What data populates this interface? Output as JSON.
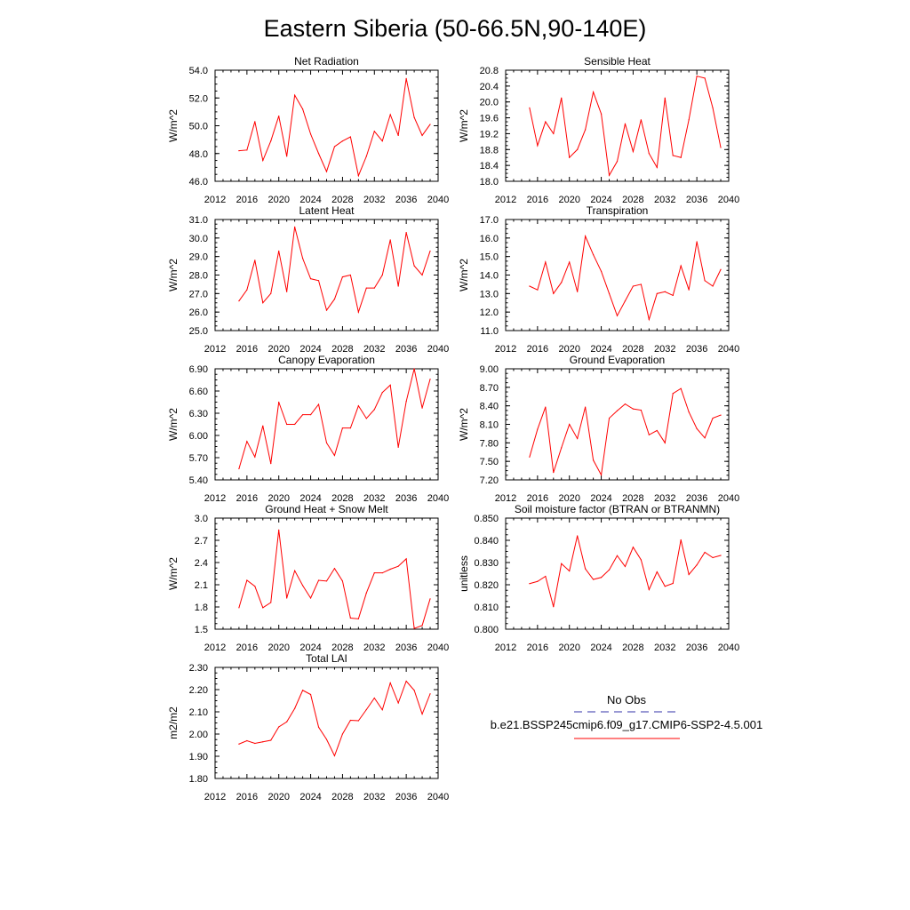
{
  "figure": {
    "title": "Eastern Siberia (50-66.5N,90-140E)"
  },
  "legend": {
    "obs_label": "No Obs",
    "obs_color": "#3333aa",
    "model_label": "b.e21.BSSP245cmip6.f09_g17.CMIP6-SSP2-4.5.001",
    "model_color": "#ff0000"
  },
  "chart_data": [
    {
      "type": "line",
      "title": "Net Radiation",
      "ylabel": "W/m^2",
      "xlim": [
        2012,
        2040
      ],
      "x_ticks": [
        2012,
        2016,
        2020,
        2024,
        2028,
        2032,
        2036,
        2040
      ],
      "x_tick_labels": [
        "2012",
        "2016",
        "2020",
        "2024",
        "2028",
        "2032",
        "2036",
        "2040"
      ],
      "ylim": [
        46.0,
        54.0
      ],
      "y_ticks": [
        46.0,
        48.0,
        50.0,
        52.0,
        54.0
      ],
      "y_tick_labels": [
        "46.0",
        "48.0",
        "50.0",
        "52.0",
        "54.0"
      ],
      "series": [
        {
          "color": "#ff0000",
          "x": [
            2015,
            2016,
            2017,
            2018,
            2019,
            2020,
            2021,
            2022,
            2023,
            2024,
            2025,
            2026,
            2027,
            2028,
            2029,
            2030,
            2031,
            2032,
            2033,
            2034,
            2035,
            2036,
            2037,
            2038,
            2039
          ],
          "y": [
            48.2,
            48.25,
            50.3,
            47.5,
            48.9,
            50.7,
            47.8,
            52.2,
            51.2,
            49.4,
            48.0,
            46.7,
            48.5,
            48.9,
            49.2,
            46.4,
            47.8,
            49.6,
            48.9,
            50.8,
            49.3,
            53.4,
            50.6,
            49.3,
            50.1
          ]
        }
      ]
    },
    {
      "type": "line",
      "title": "Sensible Heat",
      "ylabel": "W/m^2",
      "xlim": [
        2012,
        2040
      ],
      "x_ticks": [
        2012,
        2016,
        2020,
        2024,
        2028,
        2032,
        2036,
        2040
      ],
      "x_tick_labels": [
        "2012",
        "2016",
        "2020",
        "2024",
        "2028",
        "2032",
        "2036",
        "2040"
      ],
      "ylim": [
        18.0,
        20.8
      ],
      "y_ticks": [
        18.0,
        18.4,
        18.8,
        19.2,
        19.6,
        20.0,
        20.4,
        20.8
      ],
      "y_tick_labels": [
        "18.0",
        "18.4",
        "18.8",
        "19.2",
        "19.6",
        "20.0",
        "20.4",
        "20.8"
      ],
      "series": [
        {
          "color": "#ff0000",
          "x": [
            2015,
            2016,
            2017,
            2018,
            2019,
            2020,
            2021,
            2022,
            2023,
            2024,
            2025,
            2026,
            2027,
            2028,
            2029,
            2030,
            2031,
            2032,
            2033,
            2034,
            2035,
            2036,
            2037,
            2038,
            2039
          ],
          "y": [
            19.85,
            18.9,
            19.5,
            19.2,
            20.1,
            18.6,
            18.8,
            19.3,
            20.25,
            19.7,
            18.15,
            18.5,
            19.45,
            18.75,
            19.55,
            18.7,
            18.35,
            20.1,
            18.65,
            18.6,
            19.55,
            20.65,
            20.6,
            19.85,
            18.85
          ]
        }
      ]
    },
    {
      "type": "line",
      "title": "Latent Heat",
      "ylabel": "W/m^2",
      "xlim": [
        2012,
        2040
      ],
      "x_ticks": [
        2012,
        2016,
        2020,
        2024,
        2028,
        2032,
        2036,
        2040
      ],
      "x_tick_labels": [
        "2012",
        "2016",
        "2020",
        "2024",
        "2028",
        "2032",
        "2036",
        "2040"
      ],
      "ylim": [
        25.0,
        31.0
      ],
      "y_ticks": [
        25.0,
        26.0,
        27.0,
        28.0,
        29.0,
        30.0,
        31.0
      ],
      "y_tick_labels": [
        "25.0",
        "26.0",
        "27.0",
        "28.0",
        "29.0",
        "30.0",
        "31.0"
      ],
      "series": [
        {
          "color": "#ff0000",
          "x": [
            2015,
            2016,
            2017,
            2018,
            2019,
            2020,
            2021,
            2022,
            2023,
            2024,
            2025,
            2026,
            2027,
            2028,
            2029,
            2030,
            2031,
            2032,
            2033,
            2034,
            2035,
            2036,
            2037,
            2038,
            2039
          ],
          "y": [
            26.6,
            27.2,
            28.8,
            26.5,
            27.0,
            29.3,
            27.1,
            30.6,
            28.9,
            27.8,
            27.7,
            26.1,
            26.7,
            27.9,
            28.0,
            26.0,
            27.3,
            27.3,
            28.0,
            29.9,
            27.4,
            30.3,
            28.5,
            28.0,
            29.3
          ]
        }
      ]
    },
    {
      "type": "line",
      "title": "Transpiration",
      "ylabel": "W/m^2",
      "xlim": [
        2012,
        2040
      ],
      "x_ticks": [
        2012,
        2016,
        2020,
        2024,
        2028,
        2032,
        2036,
        2040
      ],
      "x_tick_labels": [
        "2012",
        "2016",
        "2020",
        "2024",
        "2028",
        "2032",
        "2036",
        "2040"
      ],
      "ylim": [
        11.0,
        17.0
      ],
      "y_ticks": [
        11.0,
        12.0,
        13.0,
        14.0,
        15.0,
        16.0,
        17.0
      ],
      "y_tick_labels": [
        "11.0",
        "12.0",
        "13.0",
        "14.0",
        "15.0",
        "16.0",
        "17.0"
      ],
      "series": [
        {
          "color": "#ff0000",
          "x": [
            2015,
            2016,
            2017,
            2018,
            2019,
            2020,
            2021,
            2022,
            2023,
            2024,
            2025,
            2026,
            2027,
            2028,
            2029,
            2030,
            2031,
            2032,
            2033,
            2034,
            2035,
            2036,
            2037,
            2038,
            2039
          ],
          "y": [
            13.4,
            13.2,
            14.7,
            13.0,
            13.6,
            14.7,
            13.1,
            16.1,
            15.1,
            14.2,
            13.0,
            11.8,
            12.6,
            13.4,
            13.5,
            11.6,
            13.0,
            13.1,
            12.9,
            14.5,
            13.2,
            15.8,
            13.7,
            13.4,
            14.3
          ]
        }
      ]
    },
    {
      "type": "line",
      "title": "Canopy Evaporation",
      "ylabel": "W/m^2",
      "xlim": [
        2012,
        2040
      ],
      "x_ticks": [
        2012,
        2016,
        2020,
        2024,
        2028,
        2032,
        2036,
        2040
      ],
      "x_tick_labels": [
        "2012",
        "2016",
        "2020",
        "2024",
        "2028",
        "2032",
        "2036",
        "2040"
      ],
      "ylim": [
        5.4,
        6.9
      ],
      "y_ticks": [
        5.4,
        5.7,
        6.0,
        6.3,
        6.6,
        6.9
      ],
      "y_tick_labels": [
        "5.40",
        "5.70",
        "6.00",
        "6.30",
        "6.60",
        "6.90"
      ],
      "series": [
        {
          "color": "#ff0000",
          "x": [
            2015,
            2016,
            2017,
            2018,
            2019,
            2020,
            2021,
            2022,
            2023,
            2024,
            2025,
            2026,
            2027,
            2028,
            2029,
            2030,
            2031,
            2032,
            2033,
            2034,
            2035,
            2036,
            2037,
            2038,
            2039
          ],
          "y": [
            5.55,
            5.92,
            5.71,
            6.13,
            5.62,
            6.45,
            6.15,
            6.15,
            6.28,
            6.28,
            6.42,
            5.9,
            5.73,
            6.1,
            6.1,
            6.4,
            6.23,
            6.35,
            6.58,
            6.68,
            5.84,
            6.46,
            6.9,
            6.37,
            6.76
          ]
        }
      ]
    },
    {
      "type": "line",
      "title": "Ground Evaporation",
      "ylabel": "W/m^2",
      "xlim": [
        2012,
        2040
      ],
      "x_ticks": [
        2012,
        2016,
        2020,
        2024,
        2028,
        2032,
        2036,
        2040
      ],
      "x_tick_labels": [
        "2012",
        "2016",
        "2020",
        "2024",
        "2028",
        "2032",
        "2036",
        "2040"
      ],
      "ylim": [
        7.2,
        9.0
      ],
      "y_ticks": [
        7.2,
        7.5,
        7.8,
        8.1,
        8.4,
        8.7,
        9.0
      ],
      "y_tick_labels": [
        "7.20",
        "7.50",
        "7.80",
        "8.10",
        "8.40",
        "8.70",
        "9.00"
      ],
      "series": [
        {
          "color": "#ff0000",
          "x": [
            2015,
            2016,
            2017,
            2018,
            2019,
            2020,
            2021,
            2022,
            2023,
            2024,
            2025,
            2026,
            2027,
            2028,
            2029,
            2030,
            2031,
            2032,
            2033,
            2034,
            2035,
            2036,
            2037,
            2038,
            2039
          ],
          "y": [
            7.57,
            8.02,
            8.38,
            7.32,
            7.72,
            8.1,
            7.87,
            8.38,
            7.52,
            7.28,
            8.2,
            8.32,
            8.43,
            8.35,
            8.33,
            7.93,
            8.0,
            7.8,
            8.6,
            8.68,
            8.3,
            8.03,
            7.88,
            8.2,
            8.25
          ]
        }
      ]
    },
    {
      "type": "line",
      "title": "Ground Heat + Snow Melt",
      "ylabel": "W/m^2",
      "xlim": [
        2012,
        2040
      ],
      "x_ticks": [
        2012,
        2016,
        2020,
        2024,
        2028,
        2032,
        2036,
        2040
      ],
      "x_tick_labels": [
        "2012",
        "2016",
        "2020",
        "2024",
        "2028",
        "2032",
        "2036",
        "2040"
      ],
      "ylim": [
        1.5,
        3.0
      ],
      "y_ticks": [
        1.5,
        1.8,
        2.1,
        2.4,
        2.7,
        3.0
      ],
      "y_tick_labels": [
        "1.5",
        "1.8",
        "2.1",
        "2.4",
        "2.7",
        "3.0"
      ],
      "series": [
        {
          "color": "#ff0000",
          "x": [
            2015,
            2016,
            2017,
            2018,
            2019,
            2020,
            2021,
            2022,
            2023,
            2024,
            2025,
            2026,
            2027,
            2028,
            2029,
            2030,
            2031,
            2032,
            2033,
            2034,
            2035,
            2036,
            2037,
            2038,
            2039
          ],
          "y": [
            1.79,
            2.16,
            2.08,
            1.79,
            1.86,
            2.84,
            1.92,
            2.29,
            2.09,
            1.92,
            2.16,
            2.15,
            2.32,
            2.15,
            1.65,
            1.64,
            1.99,
            2.26,
            2.26,
            2.31,
            2.35,
            2.45,
            1.51,
            1.55,
            1.91
          ]
        }
      ]
    },
    {
      "type": "line",
      "title": "Soil moisture factor (BTRAN or BTRANMN)",
      "ylabel": "unitless",
      "xlim": [
        2012,
        2040
      ],
      "x_ticks": [
        2012,
        2016,
        2020,
        2024,
        2028,
        2032,
        2036,
        2040
      ],
      "x_tick_labels": [
        "2012",
        "2016",
        "2020",
        "2024",
        "2028",
        "2032",
        "2036",
        "2040"
      ],
      "ylim": [
        0.8,
        0.85
      ],
      "y_ticks": [
        0.8,
        0.81,
        0.82,
        0.83,
        0.84,
        0.85
      ],
      "y_tick_labels": [
        "0.800",
        "0.810",
        "0.820",
        "0.830",
        "0.840",
        "0.850"
      ],
      "series": [
        {
          "color": "#ff0000",
          "x": [
            2015,
            2016,
            2017,
            2018,
            2019,
            2020,
            2021,
            2022,
            2023,
            2024,
            2025,
            2026,
            2027,
            2028,
            2029,
            2030,
            2031,
            2032,
            2033,
            2034,
            2035,
            2036,
            2037,
            2038,
            2039
          ],
          "y": [
            0.8205,
            0.8215,
            0.8238,
            0.8101,
            0.8295,
            0.8262,
            0.842,
            0.8272,
            0.8224,
            0.8233,
            0.8267,
            0.8331,
            0.8282,
            0.8369,
            0.8312,
            0.8178,
            0.8258,
            0.8193,
            0.8206,
            0.8402,
            0.8246,
            0.8289,
            0.8346,
            0.8322,
            0.8332
          ]
        }
      ]
    },
    {
      "type": "line",
      "title": "Total LAI",
      "ylabel": "m2/m2",
      "xlim": [
        2012,
        2040
      ],
      "x_ticks": [
        2012,
        2016,
        2020,
        2024,
        2028,
        2032,
        2036,
        2040
      ],
      "x_tick_labels": [
        "2012",
        "2016",
        "2020",
        "2024",
        "2028",
        "2032",
        "2036",
        "2040"
      ],
      "ylim": [
        1.8,
        2.3
      ],
      "y_ticks": [
        1.8,
        1.9,
        2.0,
        2.1,
        2.2,
        2.3
      ],
      "y_tick_labels": [
        "1.80",
        "1.90",
        "2.00",
        "2.10",
        "2.20",
        "2.30"
      ],
      "series": [
        {
          "color": "#ff0000",
          "x": [
            2015,
            2016,
            2017,
            2018,
            2019,
            2020,
            2021,
            2022,
            2023,
            2024,
            2025,
            2026,
            2027,
            2028,
            2029,
            2030,
            2031,
            2032,
            2033,
            2034,
            2035,
            2036,
            2037,
            2038,
            2039
          ],
          "y": [
            1.955,
            1.97,
            1.958,
            1.965,
            1.972,
            2.032,
            2.055,
            2.115,
            2.197,
            2.178,
            2.031,
            1.976,
            1.902,
            2.0,
            2.062,
            2.06,
            2.11,
            2.162,
            2.109,
            2.23,
            2.14,
            2.238,
            2.197,
            2.09,
            2.181
          ]
        }
      ]
    }
  ]
}
